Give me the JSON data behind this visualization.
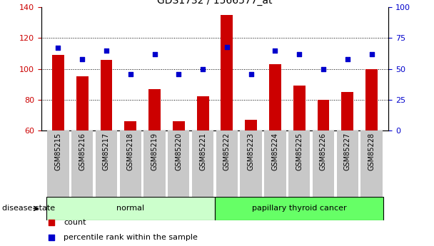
{
  "title": "GDS1732 / 1566577_at",
  "samples": [
    "GSM85215",
    "GSM85216",
    "GSM85217",
    "GSM85218",
    "GSM85219",
    "GSM85220",
    "GSM85221",
    "GSM85222",
    "GSM85223",
    "GSM85224",
    "GSM85225",
    "GSM85226",
    "GSM85227",
    "GSM85228"
  ],
  "count_values": [
    109,
    95,
    106,
    66,
    87,
    66,
    82,
    135,
    67,
    103,
    89,
    80,
    85,
    100
  ],
  "percentile_values": [
    67,
    58,
    65,
    46,
    62,
    46,
    50,
    68,
    46,
    65,
    62,
    50,
    58,
    62
  ],
  "groups": [
    {
      "label": "normal",
      "start": 0,
      "end": 7,
      "color": "#ccffcc"
    },
    {
      "label": "papillary thyroid cancer",
      "start": 7,
      "end": 14,
      "color": "#66ff66"
    }
  ],
  "ylim_left": [
    60,
    140
  ],
  "ylim_right": [
    0,
    100
  ],
  "yticks_left": [
    60,
    80,
    100,
    120,
    140
  ],
  "yticks_right": [
    0,
    25,
    50,
    75,
    100
  ],
  "bar_color": "#cc0000",
  "dot_color": "#0000cc",
  "bar_bottom": 60,
  "grid_color": "#000000",
  "legend_items": [
    {
      "label": "count",
      "color": "#cc0000"
    },
    {
      "label": "percentile rank within the sample",
      "color": "#0000cc"
    }
  ],
  "disease_state_label": "disease state",
  "tick_label_color_left": "#cc0000",
  "tick_label_color_right": "#0000cc",
  "bg_color": "#ffffff",
  "tick_bg_color": "#c8c8c8",
  "normal_group_color": "#ccffcc",
  "cancer_group_color": "#66ff66"
}
